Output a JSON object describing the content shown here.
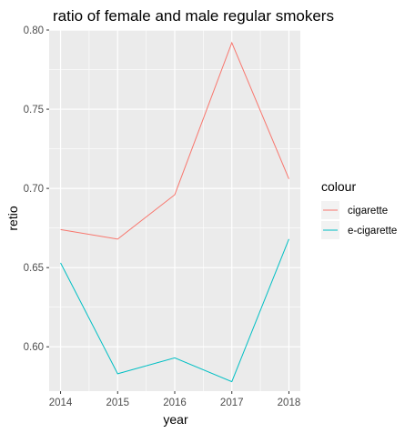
{
  "chart_data": {
    "type": "line",
    "title": "ratio of female and male regular smokers",
    "xlabel": "year",
    "ylabel": "retio",
    "x": [
      2014,
      2015,
      2016,
      2017,
      2018
    ],
    "xlim": [
      2013.8,
      2018.2
    ],
    "ylim": [
      0.572,
      0.8
    ],
    "yticks": [
      0.6,
      0.65,
      0.7,
      0.75,
      0.8
    ],
    "ytick_labels": [
      "0.60",
      "0.65",
      "0.70",
      "0.75",
      "0.80"
    ],
    "xtick_labels": [
      "2014",
      "2015",
      "2016",
      "2017",
      "2018"
    ],
    "grid": true,
    "legend": {
      "title": "colour",
      "position": "right"
    },
    "series": [
      {
        "name": "cigarette",
        "color": "#F8766D",
        "values": [
          0.674,
          0.668,
          0.696,
          0.792,
          0.706
        ]
      },
      {
        "name": "e-cigarette",
        "color": "#00BFC4",
        "values": [
          0.653,
          0.583,
          0.593,
          0.578,
          0.668
        ]
      }
    ]
  }
}
